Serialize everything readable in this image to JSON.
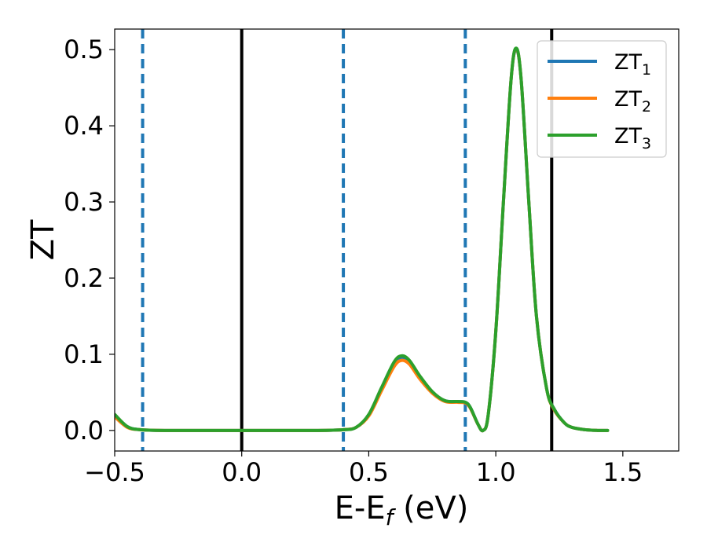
{
  "chart_data": {
    "type": "line",
    "xlabel": "E-E_f (eV)",
    "ylabel": "ZT",
    "xlim": [
      -0.5,
      1.72
    ],
    "ylim": [
      -0.027,
      0.527
    ],
    "xticks": [
      -0.5,
      0.0,
      0.5,
      1.0,
      1.5
    ],
    "xtick_labels": [
      "−0.5",
      "0.0",
      "0.5",
      "1.0",
      "1.5"
    ],
    "yticks": [
      0.0,
      0.1,
      0.2,
      0.3,
      0.4,
      0.5
    ],
    "ytick_labels": [
      "0.0",
      "0.1",
      "0.2",
      "0.3",
      "0.4",
      "0.5"
    ],
    "grid": false,
    "legend_position": "top-right",
    "series": [
      {
        "name": "ZT1",
        "label_base": "ZT",
        "label_sub": "1",
        "color": "#1f77b4",
        "x": [
          -0.5,
          -0.45,
          -0.4,
          -0.3,
          0.0,
          0.3,
          0.4,
          0.45,
          0.5,
          0.55,
          0.6,
          0.63,
          0.66,
          0.7,
          0.75,
          0.8,
          0.85,
          0.88,
          0.9,
          0.93,
          0.95,
          0.97,
          1.0,
          1.03,
          1.06,
          1.08,
          1.1,
          1.13,
          1.16,
          1.2,
          1.23,
          1.27,
          1.3,
          1.35,
          1.4,
          1.44
        ],
        "y": [
          0.02,
          0.005,
          0.001,
          0.0,
          0.0,
          0.0,
          0.001,
          0.004,
          0.02,
          0.055,
          0.088,
          0.096,
          0.09,
          0.07,
          0.05,
          0.039,
          0.038,
          0.037,
          0.03,
          0.008,
          0.0,
          0.02,
          0.13,
          0.3,
          0.46,
          0.5,
          0.46,
          0.3,
          0.15,
          0.055,
          0.028,
          0.01,
          0.004,
          0.001,
          0.0,
          0.0
        ]
      },
      {
        "name": "ZT2",
        "label_base": "ZT",
        "label_sub": "2",
        "color": "#ff7f0e",
        "x": [
          -0.5,
          -0.45,
          -0.4,
          -0.3,
          0.0,
          0.3,
          0.4,
          0.45,
          0.5,
          0.55,
          0.6,
          0.63,
          0.66,
          0.7,
          0.75,
          0.8,
          0.85,
          0.88,
          0.9,
          0.93,
          0.95,
          0.97,
          1.0,
          1.03,
          1.06,
          1.08,
          1.1,
          1.13,
          1.16,
          1.2,
          1.23,
          1.27,
          1.3,
          1.35,
          1.4,
          1.44
        ],
        "y": [
          0.018,
          0.004,
          0.001,
          0.0,
          0.0,
          0.0,
          0.001,
          0.004,
          0.019,
          0.052,
          0.084,
          0.092,
          0.087,
          0.068,
          0.049,
          0.038,
          0.037,
          0.036,
          0.029,
          0.008,
          0.0,
          0.02,
          0.13,
          0.3,
          0.46,
          0.501,
          0.46,
          0.3,
          0.15,
          0.055,
          0.027,
          0.01,
          0.004,
          0.001,
          0.0,
          0.0
        ]
      },
      {
        "name": "ZT3",
        "label_base": "ZT",
        "label_sub": "3",
        "color": "#2ca02c",
        "x": [
          -0.5,
          -0.45,
          -0.4,
          -0.3,
          0.0,
          0.3,
          0.4,
          0.45,
          0.5,
          0.55,
          0.6,
          0.63,
          0.66,
          0.7,
          0.75,
          0.8,
          0.85,
          0.88,
          0.9,
          0.93,
          0.95,
          0.97,
          1.0,
          1.03,
          1.06,
          1.08,
          1.1,
          1.13,
          1.16,
          1.2,
          1.23,
          1.27,
          1.3,
          1.35,
          1.4,
          1.44
        ],
        "y": [
          0.021,
          0.005,
          0.001,
          0.0,
          0.0,
          0.0,
          0.001,
          0.004,
          0.021,
          0.056,
          0.09,
          0.098,
          0.092,
          0.072,
          0.051,
          0.039,
          0.038,
          0.037,
          0.03,
          0.008,
          0.0,
          0.02,
          0.13,
          0.3,
          0.46,
          0.502,
          0.46,
          0.3,
          0.15,
          0.055,
          0.028,
          0.01,
          0.004,
          0.001,
          0.0,
          0.0
        ]
      }
    ],
    "vlines": [
      {
        "x": -0.39,
        "style": "dashed",
        "color": "#1f77b4"
      },
      {
        "x": 0.0,
        "style": "solid",
        "color": "#000000"
      },
      {
        "x": 0.4,
        "style": "dashed",
        "color": "#1f77b4"
      },
      {
        "x": 0.88,
        "style": "dashed",
        "color": "#1f77b4"
      },
      {
        "x": 1.22,
        "style": "solid",
        "color": "#000000"
      }
    ]
  }
}
